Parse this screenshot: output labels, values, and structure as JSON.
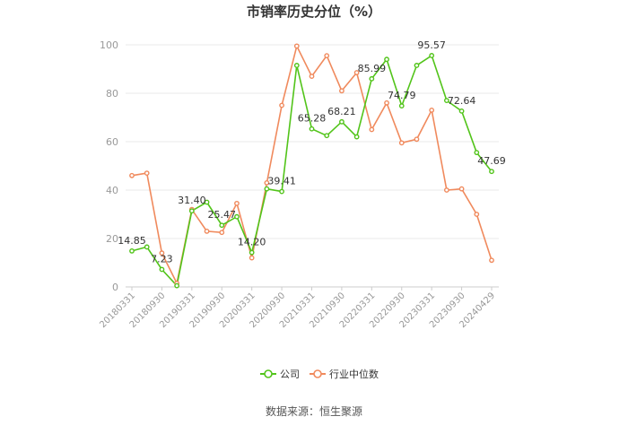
{
  "chart_data": {
    "type": "line",
    "title": "市销率历史分位（%）",
    "source": "数据来源：恒生聚源",
    "ylim": [
      0,
      100
    ],
    "yticks": [
      0,
      20,
      40,
      60,
      80,
      100
    ],
    "grid": "horizontal",
    "legend_position": "bottom",
    "x_tick_labels": [
      "20180331",
      "20180930",
      "20190331",
      "20190930",
      "20200331",
      "20200930",
      "20210331",
      "20210930",
      "20220331",
      "20220930",
      "20230331",
      "20230930",
      "20240429"
    ],
    "colors": {
      "公司": "#52c41a",
      "行业中位数": "#f08a5d"
    },
    "series": [
      {
        "name": "公司",
        "values": [
          14.85,
          16.5,
          7.23,
          0.5,
          31.4,
          35.0,
          25.47,
          29.0,
          14.2,
          40.5,
          39.41,
          91.5,
          65.28,
          62.5,
          68.21,
          62.0,
          85.99,
          94.0,
          74.79,
          91.5,
          95.57,
          77.0,
          72.64,
          55.5,
          47.69
        ],
        "labels": [
          "14.85",
          "",
          "7.23",
          "",
          "31.40",
          "",
          "25.47",
          "",
          "14.20",
          "",
          "39.41",
          "",
          "65.28",
          "",
          "68.21",
          "",
          "85.99",
          "",
          "74.79",
          "",
          "95.57",
          "",
          "72.64",
          "",
          "47.69"
        ]
      },
      {
        "name": "行业中位数",
        "values": [
          46.0,
          47.0,
          14.0,
          1.5,
          32.0,
          23.0,
          22.5,
          34.5,
          12.0,
          43.0,
          75.0,
          99.5,
          87.0,
          95.5,
          81.0,
          88.5,
          65.0,
          76.0,
          59.5,
          61.0,
          73.0,
          40.0,
          40.5,
          30.0,
          11.0
        ]
      }
    ]
  }
}
